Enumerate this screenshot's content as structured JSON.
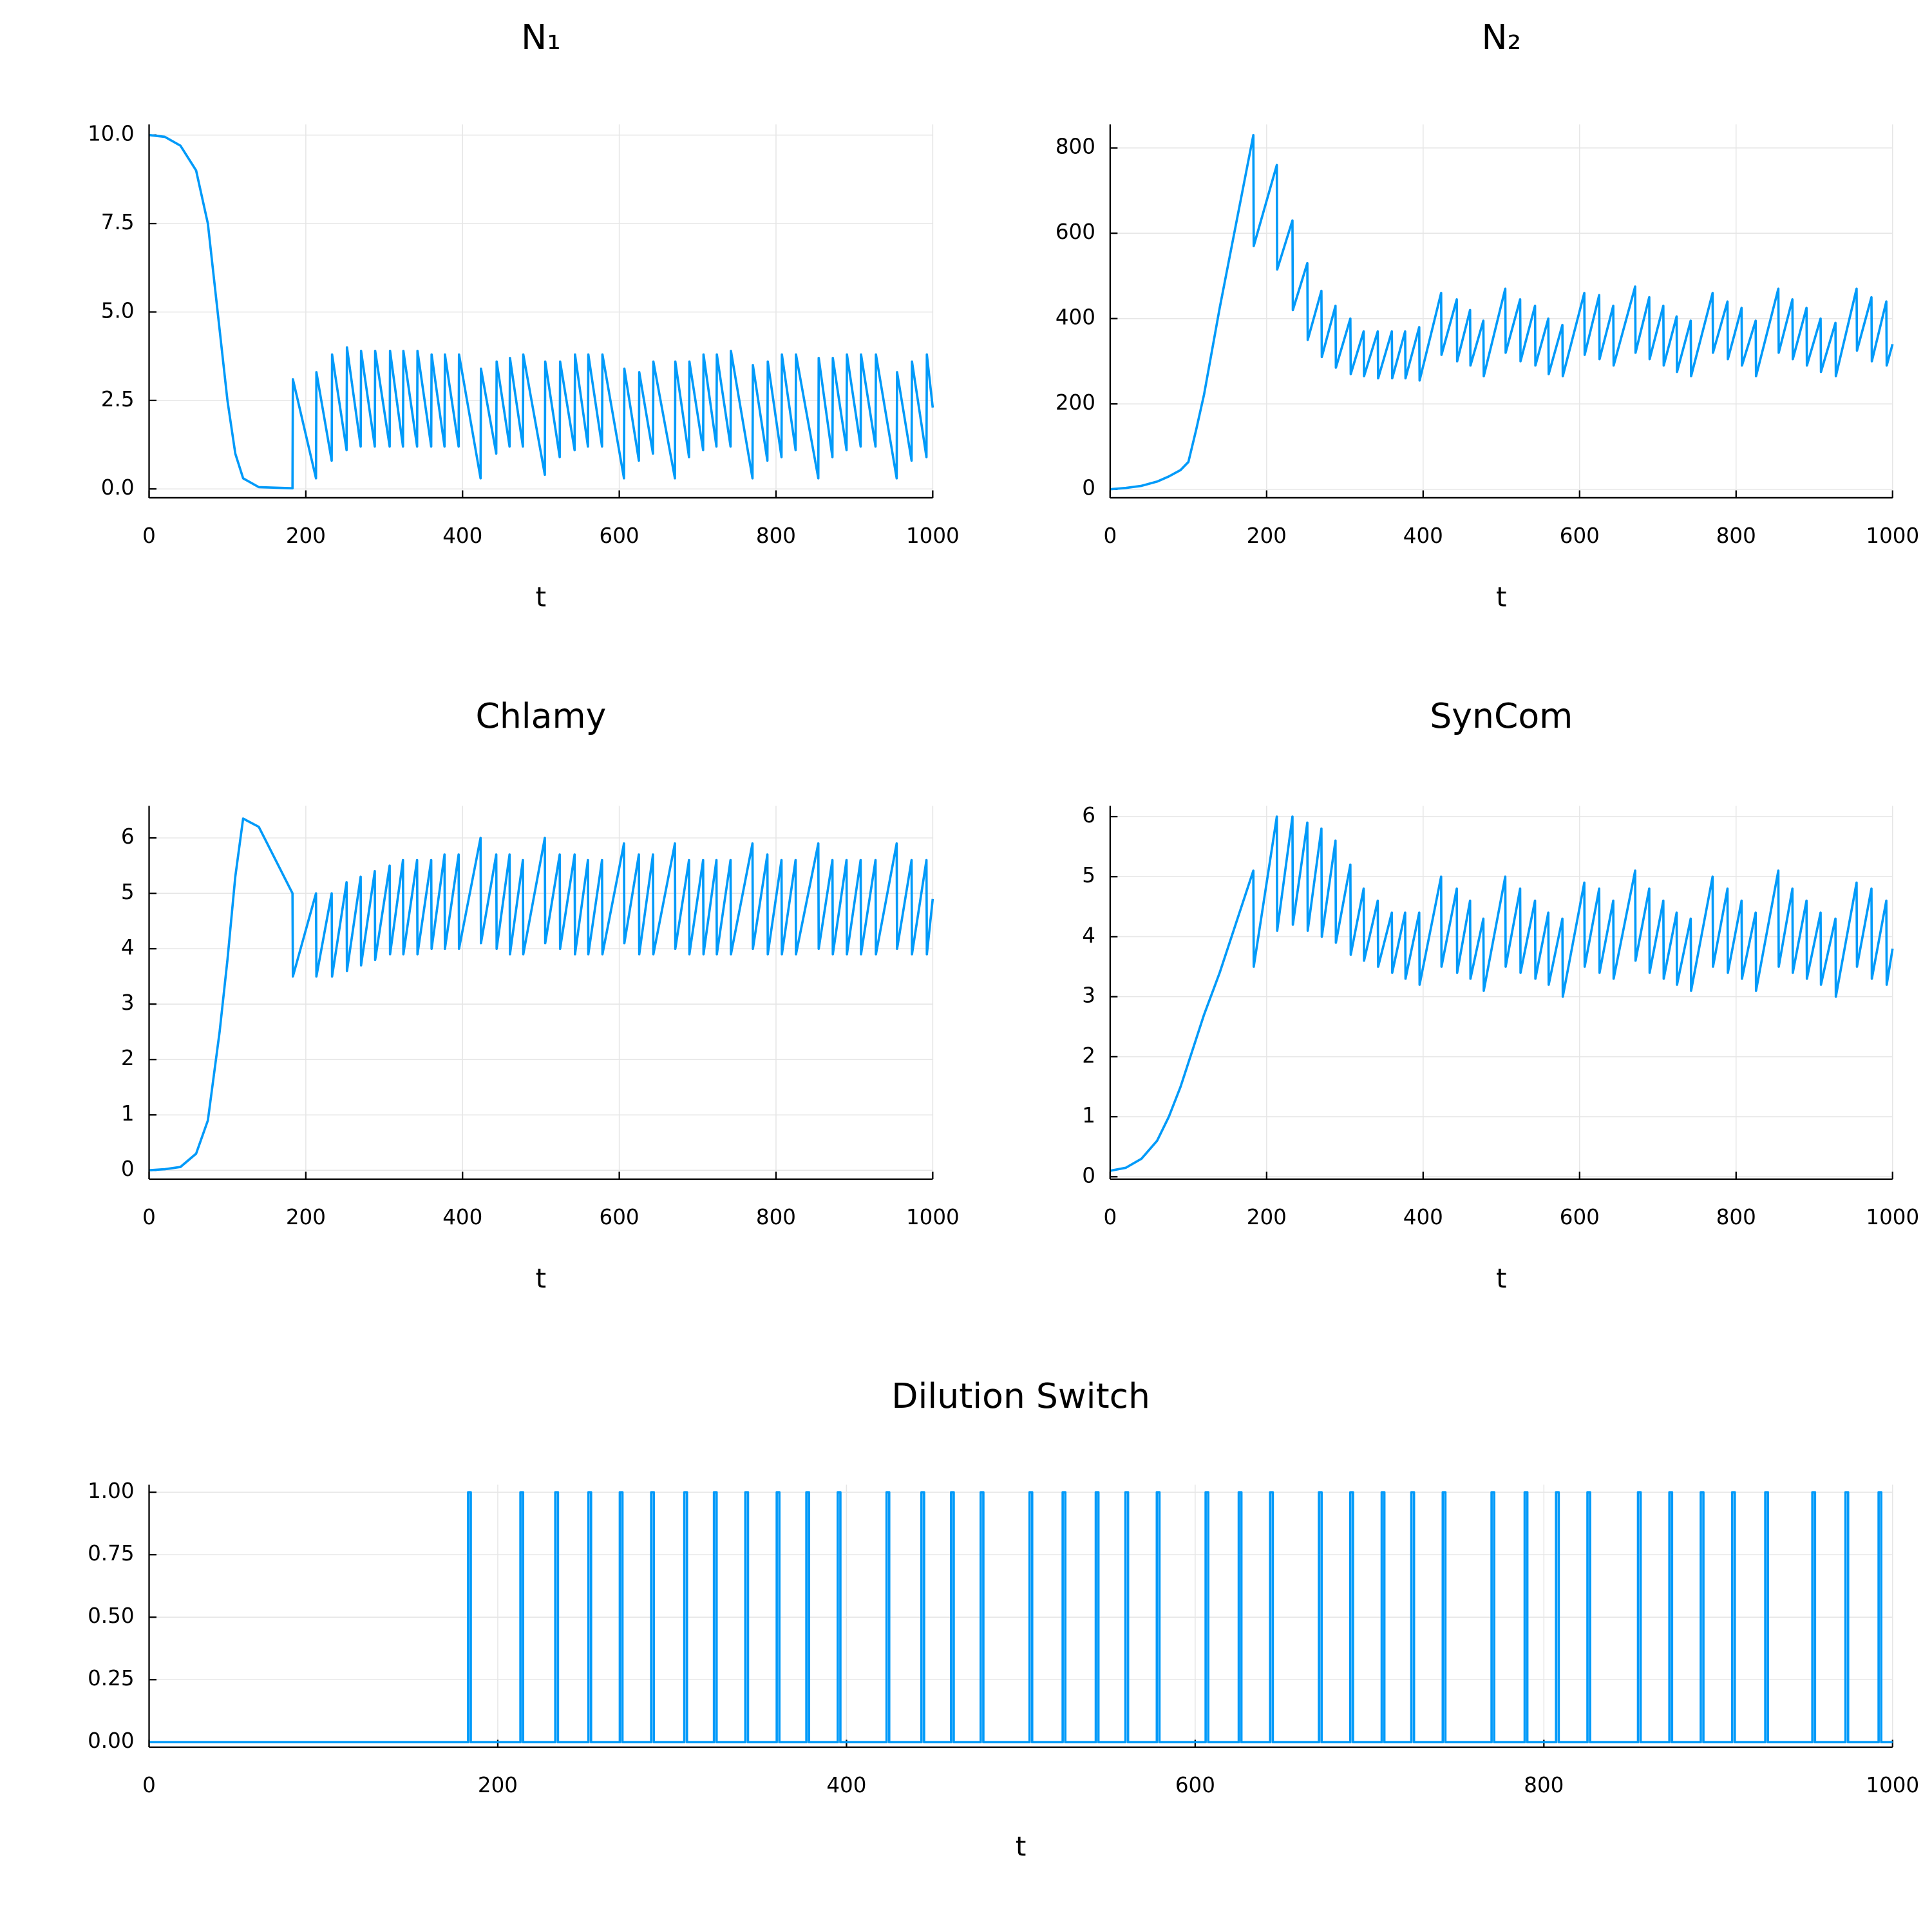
{
  "chart_data": [
    {
      "type": "line",
      "title": "N₁",
      "xlabel": "t",
      "color": "#009af9",
      "grid": true,
      "xlim": [
        0,
        1000
      ],
      "xticks": [
        0,
        200,
        400,
        600,
        800,
        1000
      ],
      "ylim": [
        -0.25,
        10.3
      ],
      "yticks": [
        {
          "value": 0,
          "label": "0.0"
        },
        2.5,
        {
          "value": 5,
          "label": "5.0"
        },
        7.5,
        {
          "value": 10,
          "label": "10.0"
        }
      ],
      "x": [
        0,
        20,
        40,
        60,
        75,
        90,
        100,
        110,
        120,
        140,
        183,
        183.5,
        213,
        213.5,
        233,
        233.5,
        252,
        252.5,
        270,
        270.5,
        288,
        288.5,
        307,
        307.5,
        324,
        324.5,
        342,
        342.5,
        360,
        360.5,
        377,
        377.5,
        395,
        395.5,
        423,
        423.5,
        443,
        443.5,
        460,
        460.5,
        477,
        477.5,
        505,
        505.5,
        524,
        524.5,
        543,
        543.5,
        560,
        560.5,
        578,
        578.5,
        606,
        606.5,
        625,
        625.5,
        643,
        643.5,
        671,
        671.5,
        689,
        689.5,
        707,
        707.5,
        724,
        724.5,
        742,
        742.5,
        770,
        770.5,
        789,
        789.5,
        807,
        807.5,
        825,
        825.5,
        854,
        854.5,
        872,
        872.5,
        890,
        890.5,
        908,
        908.5,
        927,
        927.5,
        954,
        954.5,
        973,
        973.5,
        992,
        992.5,
        1000
      ],
      "values": [
        10,
        9.95,
        9.7,
        9,
        7.5,
        4.5,
        2.5,
        1,
        0.3,
        0.05,
        0.02,
        3.1,
        0.3,
        3.3,
        0.8,
        3.8,
        1.1,
        4.0,
        1.2,
        3.9,
        1.2,
        3.9,
        1.2,
        3.9,
        1.2,
        3.9,
        1.2,
        3.9,
        1.2,
        3.8,
        1.2,
        3.8,
        1.2,
        3.8,
        0.3,
        3.4,
        1.0,
        3.6,
        1.2,
        3.7,
        1.2,
        3.8,
        0.4,
        3.6,
        0.9,
        3.6,
        1.1,
        3.8,
        1.2,
        3.8,
        1.2,
        3.8,
        0.3,
        3.4,
        0.8,
        3.3,
        1.0,
        3.6,
        0.3,
        3.6,
        0.9,
        3.6,
        1.1,
        3.8,
        1.2,
        3.8,
        1.2,
        3.9,
        0.3,
        3.5,
        0.8,
        3.6,
        0.9,
        3.8,
        1.1,
        3.8,
        0.3,
        3.7,
        0.9,
        3.7,
        1.1,
        3.8,
        1.2,
        3.8,
        1.2,
        3.8,
        0.3,
        3.3,
        0.8,
        3.6,
        0.9,
        3.8,
        2.3
      ]
    },
    {
      "type": "line",
      "title": "N₂",
      "xlabel": "t",
      "color": "#009af9",
      "grid": true,
      "xlim": [
        0,
        1000
      ],
      "xticks": [
        0,
        200,
        400,
        600,
        800,
        1000
      ],
      "ylim": [
        -20,
        855
      ],
      "yticks": [
        0,
        200,
        400,
        600,
        800
      ],
      "x": [
        0,
        20,
        40,
        60,
        75,
        90,
        100,
        110,
        120,
        140,
        183,
        183.5,
        213,
        213.5,
        233,
        233.5,
        252,
        252.5,
        270,
        270.5,
        288,
        288.5,
        307,
        307.5,
        324,
        324.5,
        342,
        342.5,
        360,
        360.5,
        377,
        377.5,
        395,
        395.5,
        423,
        423.5,
        443,
        443.5,
        460,
        460.5,
        477,
        477.5,
        505,
        505.5,
        524,
        524.5,
        543,
        543.5,
        560,
        560.5,
        578,
        578.5,
        606,
        606.5,
        625,
        625.5,
        643,
        643.5,
        671,
        671.5,
        689,
        689.5,
        707,
        707.5,
        724,
        724.5,
        742,
        742.5,
        770,
        770.5,
        789,
        789.5,
        807,
        807.5,
        825,
        825.5,
        854,
        854.5,
        872,
        872.5,
        890,
        890.5,
        908,
        908.5,
        927,
        927.5,
        954,
        954.5,
        973,
        973.5,
        992,
        992.5,
        1000
      ],
      "values": [
        0,
        3,
        8,
        18,
        30,
        45,
        64,
        140,
        222,
        425,
        830,
        570,
        760,
        515,
        630,
        420,
        530,
        350,
        465,
        310,
        430,
        285,
        400,
        270,
        370,
        265,
        370,
        260,
        370,
        260,
        370,
        260,
        380,
        255,
        460,
        315,
        445,
        300,
        420,
        290,
        395,
        265,
        470,
        320,
        445,
        300,
        430,
        290,
        400,
        270,
        385,
        265,
        460,
        315,
        455,
        305,
        430,
        290,
        475,
        320,
        450,
        305,
        430,
        290,
        405,
        275,
        395,
        265,
        460,
        320,
        440,
        305,
        425,
        290,
        395,
        265,
        470,
        320,
        445,
        305,
        425,
        290,
        400,
        275,
        390,
        265,
        470,
        325,
        450,
        300,
        440,
        290,
        340
      ]
    },
    {
      "type": "line",
      "title": "Chlamy",
      "xlabel": "t",
      "color": "#009af9",
      "grid": true,
      "xlim": [
        0,
        1000
      ],
      "xticks": [
        0,
        200,
        400,
        600,
        800,
        1000
      ],
      "ylim": [
        -0.16,
        6.58
      ],
      "yticks": [
        0,
        1,
        2,
        3,
        4,
        5,
        6
      ],
      "x": [
        0,
        20,
        40,
        60,
        75,
        90,
        100,
        110,
        120,
        140,
        183,
        183.5,
        213,
        213.5,
        233,
        233.5,
        252,
        252.5,
        270,
        270.5,
        288,
        288.5,
        307,
        307.5,
        324,
        324.5,
        342,
        342.5,
        360,
        360.5,
        377,
        377.5,
        395,
        395.5,
        423,
        423.5,
        443,
        443.5,
        460,
        460.5,
        477,
        477.5,
        505,
        505.5,
        524,
        524.5,
        543,
        543.5,
        560,
        560.5,
        578,
        578.5,
        606,
        606.5,
        625,
        625.5,
        643,
        643.5,
        671,
        671.5,
        689,
        689.5,
        707,
        707.5,
        724,
        724.5,
        742,
        742.5,
        770,
        770.5,
        789,
        789.5,
        807,
        807.5,
        825,
        825.5,
        854,
        854.5,
        872,
        872.5,
        890,
        890.5,
        908,
        908.5,
        927,
        927.5,
        954,
        954.5,
        973,
        973.5,
        992,
        992.5,
        1000
      ],
      "values": [
        0,
        0.02,
        0.06,
        0.3,
        0.9,
        2.5,
        3.8,
        5.3,
        6.35,
        6.2,
        5.0,
        3.5,
        5.0,
        3.5,
        5.0,
        3.5,
        5.2,
        3.6,
        5.3,
        3.7,
        5.4,
        3.8,
        5.5,
        3.9,
        5.6,
        3.9,
        5.6,
        3.9,
        5.6,
        4.0,
        5.7,
        4.0,
        5.7,
        4.0,
        6.0,
        4.1,
        5.7,
        4.0,
        5.7,
        3.9,
        5.6,
        3.9,
        6.0,
        4.1,
        5.7,
        4.0,
        5.7,
        3.9,
        5.6,
        3.9,
        5.6,
        3.9,
        5.9,
        4.1,
        5.7,
        3.9,
        5.7,
        3.9,
        5.9,
        4.0,
        5.6,
        3.9,
        5.6,
        3.9,
        5.6,
        3.9,
        5.6,
        3.9,
        5.9,
        4.0,
        5.7,
        3.9,
        5.6,
        3.9,
        5.6,
        3.9,
        5.9,
        4.0,
        5.6,
        3.9,
        5.6,
        3.9,
        5.6,
        3.9,
        5.6,
        3.9,
        5.9,
        4.0,
        5.6,
        3.9,
        5.6,
        3.9,
        4.9
      ]
    },
    {
      "type": "line",
      "title": "SynCom",
      "xlabel": "t",
      "color": "#009af9",
      "grid": true,
      "xlim": [
        0,
        1000
      ],
      "xticks": [
        0,
        200,
        400,
        600,
        800,
        1000
      ],
      "ylim": [
        -0.04,
        6.18
      ],
      "yticks": [
        0,
        1,
        2,
        3,
        4,
        5,
        6
      ],
      "x": [
        0,
        20,
        40,
        60,
        75,
        90,
        100,
        110,
        120,
        140,
        183,
        183.5,
        213,
        213.5,
        233,
        233.5,
        252,
        252.5,
        270,
        270.5,
        288,
        288.5,
        307,
        307.5,
        324,
        324.5,
        342,
        342.5,
        360,
        360.5,
        377,
        377.5,
        395,
        395.5,
        423,
        423.5,
        443,
        443.5,
        460,
        460.5,
        477,
        477.5,
        505,
        505.5,
        524,
        524.5,
        543,
        543.5,
        560,
        560.5,
        578,
        578.5,
        606,
        606.5,
        625,
        625.5,
        643,
        643.5,
        671,
        671.5,
        689,
        689.5,
        707,
        707.5,
        724,
        724.5,
        742,
        742.5,
        770,
        770.5,
        789,
        789.5,
        807,
        807.5,
        825,
        825.5,
        854,
        854.5,
        872,
        872.5,
        890,
        890.5,
        908,
        908.5,
        927,
        927.5,
        954,
        954.5,
        973,
        973.5,
        992,
        992.5,
        1000
      ],
      "values": [
        0.1,
        0.15,
        0.3,
        0.6,
        1.0,
        1.5,
        1.9,
        2.3,
        2.7,
        3.4,
        5.1,
        3.5,
        6.0,
        4.1,
        6.0,
        4.2,
        5.9,
        4.1,
        5.8,
        4.0,
        5.6,
        3.9,
        5.2,
        3.7,
        4.8,
        3.6,
        4.6,
        3.5,
        4.4,
        3.4,
        4.4,
        3.3,
        4.4,
        3.2,
        5.0,
        3.5,
        4.8,
        3.4,
        4.6,
        3.3,
        4.3,
        3.1,
        5.0,
        3.5,
        4.8,
        3.4,
        4.6,
        3.3,
        4.4,
        3.2,
        4.3,
        3.0,
        4.9,
        3.5,
        4.8,
        3.4,
        4.6,
        3.3,
        5.1,
        3.6,
        4.8,
        3.4,
        4.6,
        3.3,
        4.4,
        3.2,
        4.3,
        3.1,
        5.0,
        3.5,
        4.8,
        3.4,
        4.6,
        3.3,
        4.4,
        3.1,
        5.1,
        3.5,
        4.8,
        3.4,
        4.6,
        3.3,
        4.4,
        3.2,
        4.3,
        3.0,
        4.9,
        3.5,
        4.8,
        3.3,
        4.6,
        3.2,
        3.8
      ]
    },
    {
      "type": "line",
      "title": "Dilution Switch",
      "xlabel": "t",
      "color": "#009af9",
      "grid": true,
      "xlim": [
        0,
        1000
      ],
      "xticks": [
        0,
        200,
        400,
        600,
        800,
        1000
      ],
      "ylim": [
        -0.02,
        1.03
      ],
      "yticks": [
        {
          "value": 0,
          "label": "0.00"
        },
        {
          "value": 0.25,
          "label": "0.25"
        },
        {
          "value": 0.5,
          "label": "0.50"
        },
        {
          "value": 0.75,
          "label": "0.75"
        },
        {
          "value": 1,
          "label": "1.00"
        }
      ],
      "x": [
        0,
        183,
        183,
        184.5,
        184.5,
        213,
        213,
        214.5,
        214.5,
        233,
        233,
        234.5,
        234.5,
        252,
        252,
        253.5,
        253.5,
        270,
        270,
        271.5,
        271.5,
        288,
        288,
        289.5,
        289.5,
        307,
        307,
        308.5,
        308.5,
        324,
        324,
        325.5,
        325.5,
        342,
        342,
        343.5,
        343.5,
        360,
        360,
        361.5,
        361.5,
        377,
        377,
        378.5,
        378.5,
        395,
        395,
        396.5,
        396.5,
        423,
        423,
        424.5,
        424.5,
        443,
        443,
        444.5,
        444.5,
        460,
        460,
        461.5,
        461.5,
        477,
        477,
        478.5,
        478.5,
        505,
        505,
        506.5,
        506.5,
        524,
        524,
        525.5,
        525.5,
        543,
        543,
        544.5,
        544.5,
        560,
        560,
        561.5,
        561.5,
        578,
        578,
        579.5,
        579.5,
        606,
        606,
        607.5,
        607.5,
        625,
        625,
        626.5,
        626.5,
        643,
        643,
        644.5,
        644.5,
        671,
        671,
        672.5,
        672.5,
        689,
        689,
        690.5,
        690.5,
        707,
        707,
        708.5,
        708.5,
        724,
        724,
        725.5,
        725.5,
        742,
        742,
        743.5,
        743.5,
        770,
        770,
        771.5,
        771.5,
        789,
        789,
        790.5,
        790.5,
        807,
        807,
        808.5,
        808.5,
        825,
        825,
        826.5,
        826.5,
        854,
        854,
        855.5,
        855.5,
        872,
        872,
        873.5,
        873.5,
        890,
        890,
        891.5,
        891.5,
        908,
        908,
        909.5,
        909.5,
        927,
        927,
        928.5,
        928.5,
        954,
        954,
        955.5,
        955.5,
        973,
        973,
        974.5,
        974.5,
        992,
        992,
        993.5,
        993.5,
        1000
      ],
      "values": [
        0,
        0,
        1,
        1,
        0,
        0,
        1,
        1,
        0,
        0,
        1,
        1,
        0,
        0,
        1,
        1,
        0,
        0,
        1,
        1,
        0,
        0,
        1,
        1,
        0,
        0,
        1,
        1,
        0,
        0,
        1,
        1,
        0,
        0,
        1,
        1,
        0,
        0,
        1,
        1,
        0,
        0,
        1,
        1,
        0,
        0,
        1,
        1,
        0,
        0,
        1,
        1,
        0,
        0,
        1,
        1,
        0,
        0,
        1,
        1,
        0,
        0,
        1,
        1,
        0,
        0,
        1,
        1,
        0,
        0,
        1,
        1,
        0,
        0,
        1,
        1,
        0,
        0,
        1,
        1,
        0,
        0,
        1,
        1,
        0,
        0,
        1,
        1,
        0,
        0,
        1,
        1,
        0,
        0,
        1,
        1,
        0,
        0,
        1,
        1,
        0,
        0,
        1,
        1,
        0,
        0,
        1,
        1,
        0,
        0,
        1,
        1,
        0,
        0,
        1,
        1,
        0,
        0,
        1,
        1,
        0,
        0,
        1,
        1,
        0,
        0,
        1,
        1,
        0,
        0,
        1,
        1,
        0,
        0,
        1,
        1,
        0,
        0,
        1,
        1,
        0,
        0,
        1,
        1,
        0,
        0,
        1,
        1,
        0,
        0,
        1,
        1,
        0,
        0,
        1,
        1,
        0,
        0,
        1,
        1,
        0,
        0,
        1,
        1,
        0,
        0
      ]
    }
  ]
}
